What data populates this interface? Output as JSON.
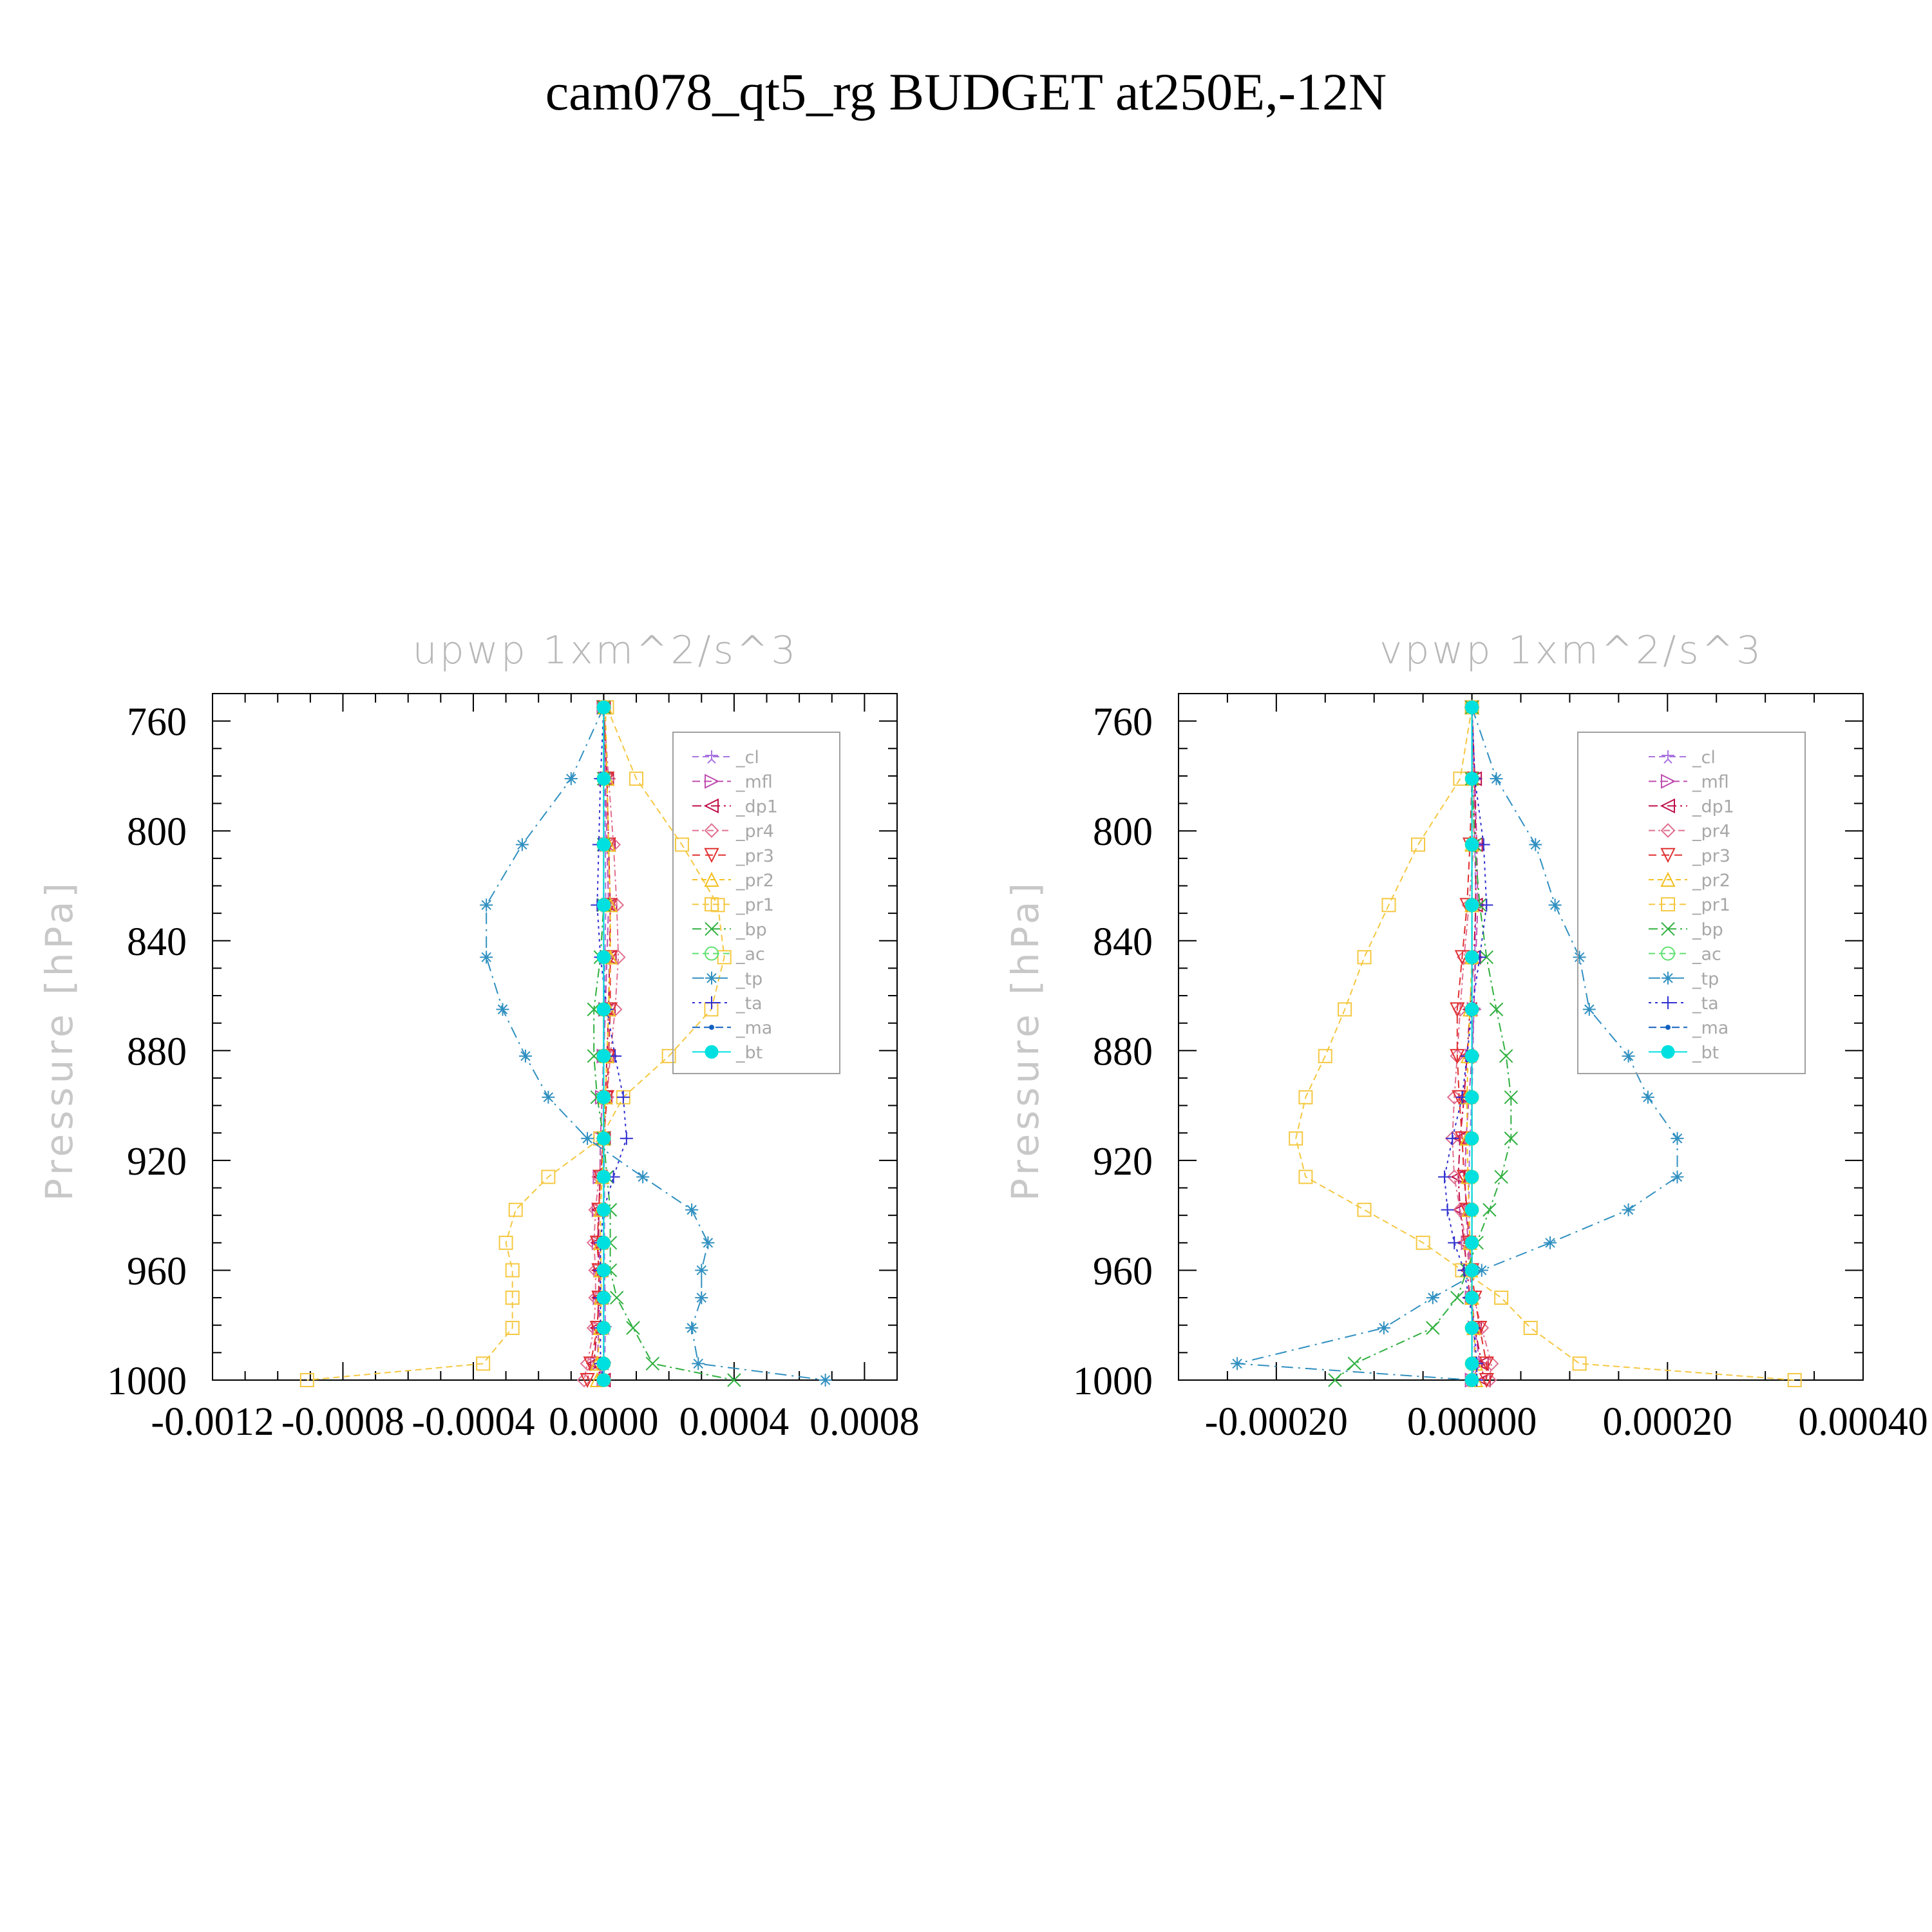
{
  "figure": {
    "title": "cam078_qt5_rg  BUDGET at250E,-12N"
  },
  "legend_order": [
    "_cl",
    "_mfl",
    "_dp1",
    "_pr4",
    "_pr3",
    "_pr2",
    "_pr1",
    "_bp",
    "_ac",
    "_tp",
    "_ta",
    "_ma",
    "_bt"
  ],
  "series_styles": {
    "_cl": {
      "color": "#a874e0",
      "marker": "star",
      "dash": "10,6"
    },
    "_mfl": {
      "color": "#c050b0",
      "marker": "tri-right",
      "dash": "12,6"
    },
    "_dp1": {
      "color": "#c0104a",
      "marker": "tri-left",
      "dash": "14,6,3,6"
    },
    "_pr4": {
      "color": "#e07090",
      "marker": "diamond",
      "dash": "10,5,3,5"
    },
    "_pr3": {
      "color": "#e03030",
      "marker": "tri-down",
      "dash": "12,8"
    },
    "_pr2": {
      "color": "#f2c020",
      "marker": "tri-up",
      "dash": "8,6"
    },
    "_pr1": {
      "color": "#f5c842",
      "marker": "square",
      "dash": "10,6"
    },
    "_bp": {
      "color": "#30b040",
      "marker": "x",
      "dash": "14,6,3,6"
    },
    "_ac": {
      "color": "#60e070",
      "marker": "circle-open",
      "dash": "10,6"
    },
    "_tp": {
      "color": "#3090c0",
      "marker": "asterisk",
      "dash": "18,8,3,8"
    },
    "_ta": {
      "color": "#3030d0",
      "marker": "plus",
      "dash": "4,6"
    },
    "_ma": {
      "color": "#1060c0",
      "marker": "dot",
      "dash": "12,6"
    },
    "_bt": {
      "color": "#00e0e0",
      "marker": "circle-filled",
      "dash": ""
    }
  },
  "chart_data": [
    {
      "type": "line",
      "title": "upwp    1xm^2/s^3",
      "ylabel": "Pressure  [hPa]",
      "xlabel": "",
      "ylim": [
        1000,
        750
      ],
      "xlim": [
        -0.0012,
        0.0009
      ],
      "xticks": [
        "-0.0012",
        "-0.0008",
        "-0.0004",
        "0.0000",
        "0.0004",
        "0.0008"
      ],
      "xtick_values": [
        -0.0012,
        -0.0008,
        -0.0004,
        0.0,
        0.0004,
        0.0008
      ],
      "yticks": [
        "760",
        "800",
        "840",
        "880",
        "920",
        "960",
        "1000"
      ],
      "ytick_values": [
        760,
        800,
        840,
        880,
        920,
        960,
        1000
      ],
      "legend_position": "top-right",
      "y": [
        755,
        781,
        805,
        827,
        846,
        865,
        882,
        897,
        912,
        926,
        938,
        950,
        960,
        970,
        981,
        994,
        1000
      ],
      "series": [
        {
          "name": "_cl",
          "values": [
            0,
            3e-06,
            5e-06,
            6e-06,
            4e-06,
            2e-06,
            0,
            -2e-06,
            0,
            2e-06,
            3e-06,
            2e-06,
            3e-06,
            4e-06,
            5e-06,
            3e-06,
            0
          ]
        },
        {
          "name": "_mfl",
          "values": [
            0,
            5e-06,
            1e-05,
            1.5e-05,
            1e-05,
            5e-06,
            0,
            -5e-06,
            -1e-05,
            -1.2e-05,
            -1.5e-05,
            -1.5e-05,
            -1e-05,
            -1.2e-05,
            -1.5e-05,
            -2e-05,
            0
          ]
        },
        {
          "name": "_dp1",
          "values": [
            0,
            1e-05,
            1.5e-05,
            2e-05,
            1.8e-05,
            1.5e-05,
            1e-05,
            5e-06,
            0,
            -1e-05,
            -1.5e-05,
            -1.8e-05,
            -1.5e-05,
            -1.5e-05,
            -2e-05,
            -3e-05,
            0
          ]
        },
        {
          "name": "_pr4",
          "values": [
            0,
            1.5e-05,
            3e-05,
            4e-05,
            4.5e-05,
            3.5e-05,
            2e-05,
            1e-05,
            0,
            -1.5e-05,
            -2.5e-05,
            -3e-05,
            -2.5e-05,
            -2.5e-05,
            -3e-05,
            -5e-05,
            -6e-05
          ]
        },
        {
          "name": "_pr3",
          "values": [
            0,
            1e-05,
            1.5e-05,
            2e-05,
            2e-05,
            2e-05,
            1.5e-05,
            1e-05,
            0,
            -1e-05,
            -1.5e-05,
            -2e-05,
            -1.5e-05,
            -1.5e-05,
            -2e-05,
            -4e-05,
            -5e-05
          ]
        },
        {
          "name": "_pr2",
          "values": [
            5e-06,
            1e-05,
            1.5e-05,
            2e-05,
            2e-05,
            1.5e-05,
            1e-05,
            5e-06,
            0,
            -5e-06,
            -1e-05,
            -1e-05,
            -8e-06,
            -8e-06,
            -1e-05,
            -2e-05,
            -2e-05
          ]
        },
        {
          "name": "_pr1",
          "values": [
            1e-05,
            0.0001,
            0.00024,
            0.00035,
            0.00037,
            0.00033,
            0.0002,
            6e-05,
            -1e-05,
            -0.00017,
            -0.00027,
            -0.0003,
            -0.00028,
            -0.00028,
            -0.00028,
            -0.00037,
            -0.00091
          ]
        },
        {
          "name": "_bp",
          "values": [
            0,
            0,
            0,
            0,
            -1e-05,
            -3e-05,
            -3e-05,
            -2e-05,
            0,
            1e-05,
            2e-05,
            2e-05,
            2e-05,
            4e-05,
            9e-05,
            0.00015,
            0.0004
          ]
        },
        {
          "name": "_ac",
          "values": [
            0,
            0,
            0,
            0,
            0,
            0,
            0,
            0,
            0,
            0,
            0,
            0,
            0,
            0,
            0,
            0,
            0
          ]
        },
        {
          "name": "_tp",
          "values": [
            0,
            -0.0001,
            -0.00025,
            -0.00036,
            -0.00036,
            -0.00031,
            -0.00024,
            -0.00017,
            -5e-05,
            0.00012,
            0.00027,
            0.00032,
            0.0003,
            0.0003,
            0.00027,
            0.00029,
            0.00068
          ]
        },
        {
          "name": "_ta",
          "values": [
            0,
            -1e-05,
            -1.5e-05,
            -2e-05,
            -1e-05,
            1e-05,
            3.5e-05,
            6e-05,
            7e-05,
            3e-05,
            0,
            -1e-05,
            -1e-05,
            -1e-05,
            -1e-05,
            -1e-05,
            0
          ]
        },
        {
          "name": "_ma",
          "values": [
            0,
            0,
            0,
            0,
            0,
            0,
            0,
            0,
            0,
            0,
            0,
            0,
            0,
            0,
            0,
            0,
            0
          ]
        },
        {
          "name": "_bt",
          "values": [
            0,
            0,
            0,
            0,
            0,
            0,
            0,
            0,
            0,
            0,
            0,
            0,
            0,
            0,
            0,
            0,
            0
          ]
        }
      ]
    },
    {
      "type": "line",
      "title": "vpwp    1xm^2/s^3",
      "ylabel": "Pressure  [hPa]",
      "xlabel": "",
      "ylim": [
        1000,
        750
      ],
      "xlim": [
        -0.0003,
        0.0004
      ],
      "xticks": [
        "-0.00020",
        "0.00000",
        "0.00020",
        "0.00040"
      ],
      "xtick_values": [
        -0.0002,
        0.0,
        0.0002,
        0.0004
      ],
      "yticks": [
        "760",
        "800",
        "840",
        "880",
        "920",
        "960",
        "1000"
      ],
      "ytick_values": [
        760,
        800,
        840,
        880,
        920,
        960,
        1000
      ],
      "legend_position": "top-right",
      "y": [
        755,
        781,
        805,
        827,
        846,
        865,
        882,
        897,
        912,
        926,
        938,
        950,
        960,
        970,
        981,
        994,
        1000
      ],
      "series": [
        {
          "name": "_cl",
          "values": [
            0,
            2e-06,
            3e-06,
            4e-06,
            3e-06,
            2e-06,
            1e-06,
            0,
            -2e-06,
            -3e-06,
            -3e-06,
            -2e-06,
            -1e-06,
            0,
            2e-06,
            3e-06,
            0
          ]
        },
        {
          "name": "_mfl",
          "values": [
            0,
            3e-06,
            5e-06,
            6e-06,
            4e-06,
            2e-06,
            0,
            -3e-06,
            -6e-06,
            -7e-06,
            -6e-06,
            -4e-06,
            -2e-06,
            0,
            3e-06,
            8e-06,
            0
          ]
        },
        {
          "name": "_dp1",
          "values": [
            0,
            3e-06,
            4e-06,
            4e-06,
            2e-06,
            -2e-06,
            -5e-06,
            -8e-06,
            -1.2e-05,
            -1.4e-05,
            -1.2e-05,
            -8e-06,
            -5e-06,
            -2e-06,
            3e-06,
            1e-05,
            1.2e-05
          ]
        },
        {
          "name": "_pr4",
          "values": [
            0,
            2e-06,
            2e-06,
            -3e-06,
            -8e-06,
            -1.2e-05,
            -1.5e-05,
            -1.8e-05,
            -2e-05,
            -1.8e-05,
            -1.2e-05,
            -6e-06,
            -2e-06,
            2e-06,
            1e-05,
            2e-05,
            1.8e-05
          ]
        },
        {
          "name": "_pr3",
          "values": [
            0,
            0,
            -2e-06,
            -5e-06,
            -1e-05,
            -1.5e-05,
            -1.5e-05,
            -1.3e-05,
            -1e-05,
            -8e-06,
            -5e-06,
            -3e-06,
            0,
            3e-06,
            8e-06,
            1.5e-05,
            1.5e-05
          ]
        },
        {
          "name": "_pr2",
          "values": [
            0,
            0,
            0,
            0,
            0,
            -2e-06,
            -4e-06,
            -5e-06,
            -5e-06,
            -4e-06,
            -3e-06,
            -2e-06,
            -1e-06,
            0,
            2e-06,
            4e-06,
            4e-06
          ]
        },
        {
          "name": "_pr1",
          "values": [
            0,
            -1.2e-05,
            -5.5e-05,
            -8.5e-05,
            -0.00011,
            -0.00013,
            -0.00015,
            -0.00017,
            -0.00018,
            -0.00017,
            -0.00011,
            -5e-05,
            -1e-05,
            3e-05,
            6e-05,
            0.00011,
            0.00033
          ]
        },
        {
          "name": "_bp",
          "values": [
            0,
            0,
            3e-06,
            8e-06,
            1.5e-05,
            2.5e-05,
            3.5e-05,
            4e-05,
            4e-05,
            3e-05,
            1.8e-05,
            5e-06,
            -5e-06,
            -1.5e-05,
            -4e-05,
            -0.00012,
            -0.00014
          ]
        },
        {
          "name": "_ac",
          "values": [
            0,
            0,
            0,
            0,
            0,
            0,
            0,
            0,
            0,
            0,
            0,
            0,
            0,
            0,
            0,
            0,
            0
          ]
        },
        {
          "name": "_tp",
          "values": [
            0,
            2.5e-05,
            6.5e-05,
            8.5e-05,
            0.00011,
            0.00012,
            0.00016,
            0.00018,
            0.00021,
            0.00021,
            0.00016,
            8e-05,
            1e-05,
            -4e-05,
            -9e-05,
            -0.00024,
            0.0
          ]
        },
        {
          "name": "_ta",
          "values": [
            0,
            3e-06,
            1.2e-05,
            1.5e-05,
            8e-06,
            0,
            -5e-06,
            -1e-05,
            -2e-05,
            -2.8e-05,
            -2.5e-05,
            -1.8e-05,
            -8e-06,
            -3e-06,
            2e-06,
            5e-06,
            5e-06
          ]
        },
        {
          "name": "_ma",
          "values": [
            0,
            0,
            0,
            0,
            0,
            0,
            0,
            0,
            0,
            0,
            0,
            0,
            0,
            0,
            0,
            0,
            0
          ]
        },
        {
          "name": "_bt",
          "values": [
            0,
            0,
            0,
            0,
            0,
            0,
            0,
            0,
            0,
            0,
            0,
            0,
            0,
            0,
            0,
            0,
            0
          ]
        }
      ]
    }
  ]
}
